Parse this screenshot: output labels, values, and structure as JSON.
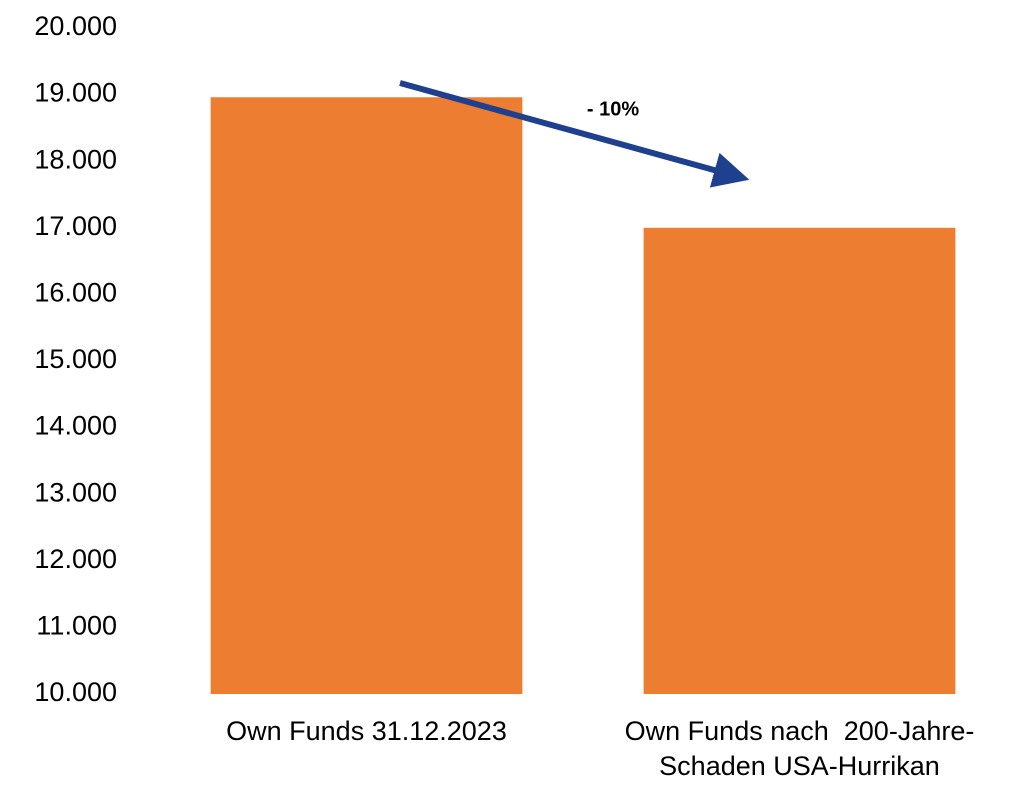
{
  "chart_data": {
    "type": "bar",
    "categories": [
      "Own Funds 31.12.2023",
      "Own Funds nach  200-Jahre-Schaden USA-Hurrikan"
    ],
    "values": [
      18960,
      17000
    ],
    "color": "#ed7d31",
    "ylim": [
      10000,
      20000
    ],
    "yticks": [
      {
        "value": 10000,
        "label": "10.000"
      },
      {
        "value": 11000,
        "label": "11.000"
      },
      {
        "value": 12000,
        "label": "12.000"
      },
      {
        "value": 13000,
        "label": "13.000"
      },
      {
        "value": 14000,
        "label": "14.000"
      },
      {
        "value": 15000,
        "label": "15.000"
      },
      {
        "value": 16000,
        "label": "16.000"
      },
      {
        "value": 17000,
        "label": "17.000"
      },
      {
        "value": 18000,
        "label": "18.000"
      },
      {
        "value": 19000,
        "label": "19.000"
      },
      {
        "value": 20000,
        "label": "20.000"
      }
    ],
    "grid": false,
    "annotation": "- 10%",
    "arrow_color": "#1f3f8f"
  }
}
